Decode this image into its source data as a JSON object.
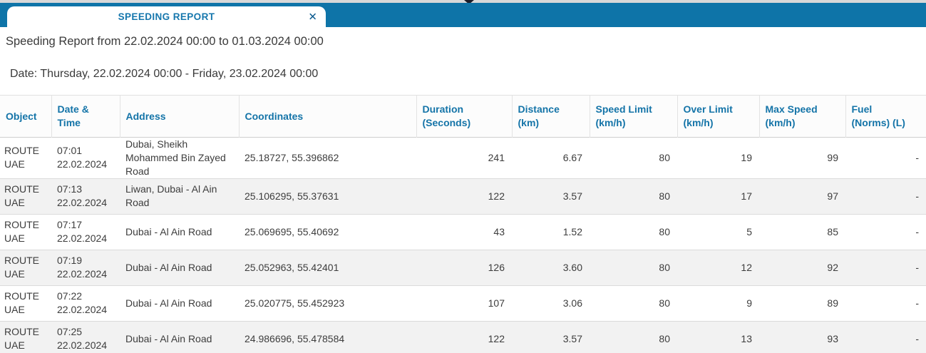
{
  "tab_bar": {
    "tab_label": "SPEEDING REPORT",
    "close_icon": "✕"
  },
  "report": {
    "title": "Speeding Report from 22.02.2024 00:00 to 01.03.2024 00:00",
    "date_line": "Date: Thursday, 22.02.2024 00:00 - Friday, 23.02.2024 00:00"
  },
  "table": {
    "columns": [
      {
        "label": "Object"
      },
      {
        "label": "Date & Time"
      },
      {
        "label": "Address"
      },
      {
        "label": "Coordinates"
      },
      {
        "label": "Duration\n(Seconds)"
      },
      {
        "label": "Distance\n(km)"
      },
      {
        "label": "Speed Limit\n(km/h)"
      },
      {
        "label": "Over Limit\n(km/h)"
      },
      {
        "label": "Max Speed\n(km/h)"
      },
      {
        "label": "Fuel\n(Norms) (L)"
      }
    ],
    "rows": [
      {
        "object": "ROUTE UAE",
        "datetime": "07:01 22.02.2024",
        "address": "Dubai, Sheikh Mohammed Bin Zayed Road",
        "coordinates": "25.18727, 55.396862",
        "duration": "241",
        "distance": "6.67",
        "speed_limit": "80",
        "over_limit": "19",
        "max_speed": "99",
        "fuel": "-"
      },
      {
        "object": "ROUTE UAE",
        "datetime": "07:13 22.02.2024",
        "address": "Liwan, Dubai - Al Ain Road",
        "coordinates": "25.106295, 55.37631",
        "duration": "122",
        "distance": "3.57",
        "speed_limit": "80",
        "over_limit": "17",
        "max_speed": "97",
        "fuel": "-"
      },
      {
        "object": "ROUTE UAE",
        "datetime": "07:17 22.02.2024",
        "address": "Dubai - Al Ain Road",
        "coordinates": "25.069695, 55.40692",
        "duration": "43",
        "distance": "1.52",
        "speed_limit": "80",
        "over_limit": "5",
        "max_speed": "85",
        "fuel": "-"
      },
      {
        "object": "ROUTE UAE",
        "datetime": "07:19 22.02.2024",
        "address": "Dubai - Al Ain Road",
        "coordinates": "25.052963, 55.42401",
        "duration": "126",
        "distance": "3.60",
        "speed_limit": "80",
        "over_limit": "12",
        "max_speed": "92",
        "fuel": "-"
      },
      {
        "object": "ROUTE UAE",
        "datetime": "07:22 22.02.2024",
        "address": "Dubai - Al Ain Road",
        "coordinates": "25.020775, 55.452923",
        "duration": "107",
        "distance": "3.06",
        "speed_limit": "80",
        "over_limit": "9",
        "max_speed": "89",
        "fuel": "-"
      },
      {
        "object": "ROUTE UAE",
        "datetime": "07:25 22.02.2024",
        "address": "Dubai - Al Ain Road",
        "coordinates": "24.986696, 55.478584",
        "duration": "122",
        "distance": "3.57",
        "speed_limit": "80",
        "over_limit": "13",
        "max_speed": "93",
        "fuel": "-"
      }
    ]
  },
  "colors": {
    "top_bar": "#0e74a8",
    "tab_background": "#ffffff",
    "tab_label": "#1677ad",
    "close_icon": "#0d5c90",
    "header_text": "#1474a8",
    "row_alt_background": "#f2f2f2",
    "row_border": "#dbdbdb",
    "body_text": "#3d3d3d"
  }
}
